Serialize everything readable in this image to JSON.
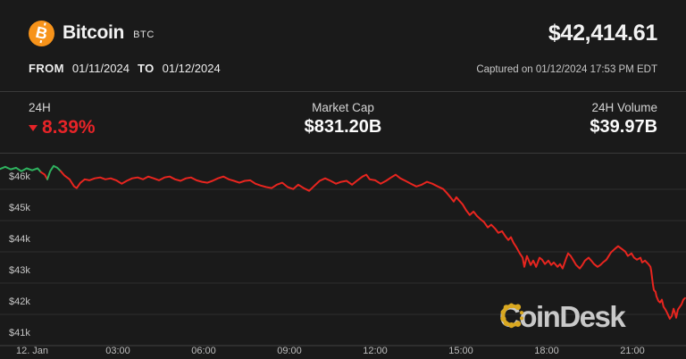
{
  "header": {
    "coin_name": "Bitcoin",
    "coin_symbol": "BTC",
    "price": "$42,414.61",
    "from_label": "FROM",
    "from_date": "01/11/2024",
    "to_label": "TO",
    "to_date": "01/12/2024",
    "captured": "Captured on 01/12/2024 17:53 PM EDT"
  },
  "stats": {
    "change_label": "24H",
    "change_value": "8.39%",
    "change_direction": "down",
    "market_cap_label": "Market Cap",
    "market_cap_value": "$831.20B",
    "volume_label": "24H Volume",
    "volume_value": "$39.97B"
  },
  "branding": {
    "coindesk_wordmark": "CoinDesk"
  },
  "colors": {
    "background": "#1a1a1a",
    "divider": "#3a3a3a",
    "grid": "#2e2e2e",
    "axis": "#424242",
    "bitcoin_orange": "#f7931a",
    "negative_red": "#e62428",
    "line_red": "#e8251f",
    "line_green": "#2fb25f",
    "coindesk_gold": "#d9a821",
    "tick_text": "#bdbdbd"
  },
  "chart_data": {
    "type": "line",
    "title": "Bitcoin BTC price, 01/11/2024 to 01/12/2024",
    "x_unit": "hours relative to 00:00 on 12 Jan",
    "y_unit": "USD (thousands)",
    "xlim": [
      -1.13,
      22.88
    ],
    "ylim": [
      41.0,
      47.1
    ],
    "grid": true,
    "x_ticks": [
      {
        "h": 0,
        "label": "12. Jan"
      },
      {
        "h": 3,
        "label": "03:00"
      },
      {
        "h": 6,
        "label": "06:00"
      },
      {
        "h": 9,
        "label": "09:00"
      },
      {
        "h": 12,
        "label": "12:00"
      },
      {
        "h": 15,
        "label": "15:00"
      },
      {
        "h": 18,
        "label": "18:00"
      },
      {
        "h": 21,
        "label": "21:00"
      }
    ],
    "y_ticks": [
      {
        "v": 46,
        "label": "$46k"
      },
      {
        "v": 45,
        "label": "$45k"
      },
      {
        "v": 44,
        "label": "$44k"
      },
      {
        "v": 43,
        "label": "$43k"
      },
      {
        "v": 42,
        "label": "$42k"
      },
      {
        "v": 41,
        "label": "$41k"
      }
    ],
    "green_ranges": [
      [
        -1.2,
        0.3
      ],
      [
        0.55,
        1.02
      ]
    ],
    "points": [
      [
        -1.13,
        46.65
      ],
      [
        -0.94,
        46.72
      ],
      [
        -0.75,
        46.64
      ],
      [
        -0.56,
        46.69
      ],
      [
        -0.38,
        46.58
      ],
      [
        -0.19,
        46.67
      ],
      [
        0,
        46.61
      ],
      [
        0.19,
        46.67
      ],
      [
        0.31,
        46.55
      ],
      [
        0.44,
        46.47
      ],
      [
        0.53,
        46.32
      ],
      [
        0.63,
        46.58
      ],
      [
        0.75,
        46.75
      ],
      [
        0.88,
        46.69
      ],
      [
        1,
        46.58
      ],
      [
        1.13,
        46.44
      ],
      [
        1.31,
        46.32
      ],
      [
        1.47,
        46.09
      ],
      [
        1.56,
        46.04
      ],
      [
        1.69,
        46.21
      ],
      [
        1.84,
        46.32
      ],
      [
        2,
        46.29
      ],
      [
        2.19,
        46.35
      ],
      [
        2.38,
        46.38
      ],
      [
        2.56,
        46.32
      ],
      [
        2.75,
        46.35
      ],
      [
        2.94,
        46.29
      ],
      [
        3.13,
        46.18
      ],
      [
        3.31,
        46.27
      ],
      [
        3.5,
        46.35
      ],
      [
        3.69,
        46.38
      ],
      [
        3.88,
        46.32
      ],
      [
        4.06,
        46.41
      ],
      [
        4.25,
        46.35
      ],
      [
        4.44,
        46.29
      ],
      [
        4.63,
        46.38
      ],
      [
        4.81,
        46.41
      ],
      [
        5,
        46.32
      ],
      [
        5.19,
        46.27
      ],
      [
        5.38,
        46.35
      ],
      [
        5.56,
        46.38
      ],
      [
        5.75,
        46.29
      ],
      [
        5.94,
        46.24
      ],
      [
        6.13,
        46.21
      ],
      [
        6.31,
        46.27
      ],
      [
        6.5,
        46.35
      ],
      [
        6.69,
        46.41
      ],
      [
        6.88,
        46.32
      ],
      [
        7.06,
        46.27
      ],
      [
        7.25,
        46.21
      ],
      [
        7.44,
        46.27
      ],
      [
        7.63,
        46.29
      ],
      [
        7.81,
        46.18
      ],
      [
        8,
        46.12
      ],
      [
        8.19,
        46.07
      ],
      [
        8.38,
        46.04
      ],
      [
        8.56,
        46.15
      ],
      [
        8.75,
        46.21
      ],
      [
        8.94,
        46.07
      ],
      [
        9.13,
        46.01
      ],
      [
        9.31,
        46.15
      ],
      [
        9.5,
        46.04
      ],
      [
        9.69,
        45.95
      ],
      [
        9.88,
        46.12
      ],
      [
        10.06,
        46.27
      ],
      [
        10.25,
        46.35
      ],
      [
        10.44,
        46.27
      ],
      [
        10.63,
        46.18
      ],
      [
        10.81,
        46.24
      ],
      [
        11,
        46.27
      ],
      [
        11.19,
        46.15
      ],
      [
        11.38,
        46.29
      ],
      [
        11.56,
        46.41
      ],
      [
        11.69,
        46.47
      ],
      [
        11.81,
        46.32
      ],
      [
        12,
        46.29
      ],
      [
        12.19,
        46.18
      ],
      [
        12.38,
        46.27
      ],
      [
        12.56,
        46.38
      ],
      [
        12.72,
        46.47
      ],
      [
        12.88,
        46.35
      ],
      [
        13.06,
        46.27
      ],
      [
        13.25,
        46.18
      ],
      [
        13.44,
        46.09
      ],
      [
        13.63,
        46.15
      ],
      [
        13.81,
        46.24
      ],
      [
        14,
        46.18
      ],
      [
        14.19,
        46.09
      ],
      [
        14.38,
        46.01
      ],
      [
        14.5,
        45.89
      ],
      [
        14.63,
        45.75
      ],
      [
        14.75,
        45.61
      ],
      [
        14.84,
        45.75
      ],
      [
        14.94,
        45.64
      ],
      [
        15.06,
        45.52
      ],
      [
        15.19,
        45.32
      ],
      [
        15.31,
        45.18
      ],
      [
        15.44,
        45.29
      ],
      [
        15.56,
        45.15
      ],
      [
        15.69,
        45.04
      ],
      [
        15.81,
        44.95
      ],
      [
        15.94,
        44.78
      ],
      [
        16.06,
        44.87
      ],
      [
        16.19,
        44.75
      ],
      [
        16.31,
        44.61
      ],
      [
        16.44,
        44.66
      ],
      [
        16.56,
        44.49
      ],
      [
        16.66,
        44.38
      ],
      [
        16.75,
        44.47
      ],
      [
        16.84,
        44.29
      ],
      [
        16.94,
        44.15
      ],
      [
        17.06,
        43.95
      ],
      [
        17.16,
        43.81
      ],
      [
        17.22,
        43.52
      ],
      [
        17.31,
        43.87
      ],
      [
        17.44,
        43.58
      ],
      [
        17.53,
        43.72
      ],
      [
        17.63,
        43.52
      ],
      [
        17.75,
        43.81
      ],
      [
        17.84,
        43.75
      ],
      [
        17.94,
        43.61
      ],
      [
        18.06,
        43.72
      ],
      [
        18.16,
        43.58
      ],
      [
        18.25,
        43.66
      ],
      [
        18.38,
        43.52
      ],
      [
        18.47,
        43.61
      ],
      [
        18.56,
        43.47
      ],
      [
        18.69,
        43.81
      ],
      [
        18.75,
        43.95
      ],
      [
        18.84,
        43.87
      ],
      [
        18.94,
        43.72
      ],
      [
        19.03,
        43.58
      ],
      [
        19.16,
        43.47
      ],
      [
        19.25,
        43.58
      ],
      [
        19.34,
        43.72
      ],
      [
        19.47,
        43.81
      ],
      [
        19.56,
        43.72
      ],
      [
        19.66,
        43.61
      ],
      [
        19.78,
        43.52
      ],
      [
        19.88,
        43.58
      ],
      [
        19.97,
        43.66
      ],
      [
        20.09,
        43.75
      ],
      [
        20.25,
        43.98
      ],
      [
        20.38,
        44.09
      ],
      [
        20.5,
        44.18
      ],
      [
        20.63,
        44.09
      ],
      [
        20.75,
        44.01
      ],
      [
        20.84,
        43.87
      ],
      [
        20.97,
        43.95
      ],
      [
        21.06,
        43.81
      ],
      [
        21.16,
        43.75
      ],
      [
        21.28,
        43.81
      ],
      [
        21.34,
        43.66
      ],
      [
        21.44,
        43.72
      ],
      [
        21.56,
        43.61
      ],
      [
        21.63,
        43.52
      ],
      [
        21.66,
        43.38
      ],
      [
        21.69,
        43.15
      ],
      [
        21.72,
        42.95
      ],
      [
        21.75,
        42.78
      ],
      [
        21.81,
        42.72
      ],
      [
        21.84,
        42.58
      ],
      [
        21.91,
        42.43
      ],
      [
        21.97,
        42.38
      ],
      [
        22.03,
        42.47
      ],
      [
        22.09,
        42.24
      ],
      [
        22.16,
        42.15
      ],
      [
        22.22,
        42.04
      ],
      [
        22.31,
        41.86
      ],
      [
        22.38,
        41.95
      ],
      [
        22.44,
        42.18
      ],
      [
        22.5,
        42.01
      ],
      [
        22.53,
        41.89
      ],
      [
        22.59,
        42.15
      ],
      [
        22.66,
        42.24
      ],
      [
        22.72,
        42.32
      ],
      [
        22.78,
        42.47
      ],
      [
        22.84,
        42.52
      ]
    ]
  }
}
